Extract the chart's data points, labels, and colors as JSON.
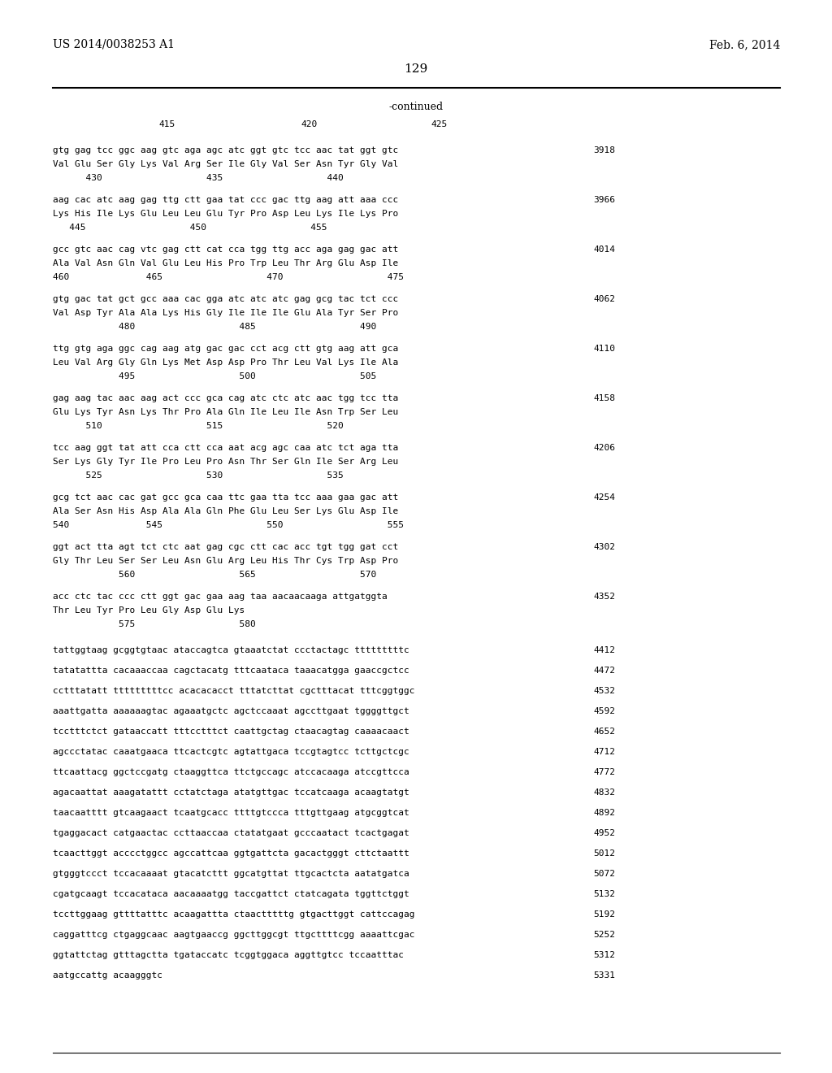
{
  "background_color": "#ffffff",
  "header_left": "US 2014/0038253 A1",
  "header_right": "Feb. 6, 2014",
  "page_number": "129",
  "continued_label": "-continued",
  "multi_blocks": [
    {
      "dna": "gtg gag tcc ggc aag gtc aga agc atc ggt gtc tcc aac tat ggt gtc",
      "aa": "Val Glu Ser Gly Lys Val Arg Ser Ile Gly Val Ser Asn Tyr Gly Val",
      "ruler": "      430                   435                   440",
      "num": "3918"
    },
    {
      "dna": "aag cac atc aag gag ttg ctt gaa tat ccc gac ttg aag att aaa ccc",
      "aa": "Lys His Ile Lys Glu Leu Leu Glu Tyr Pro Asp Leu Lys Ile Lys Pro",
      "ruler": "   445                   450                   455",
      "num": "3966"
    },
    {
      "dna": "gcc gtc aac cag vtc gag ctt cat cca tgg ttg acc aga gag gac att",
      "aa": "Ala Val Asn Gln Val Glu Leu His Pro Trp Leu Thr Arg Glu Asp Ile",
      "ruler": "460              465                   470                   475",
      "num": "4014"
    },
    {
      "dna": "gtg gac tat gct gcc aaa cac gga atc atc atc gag gcg tac tct ccc",
      "aa": "Val Asp Tyr Ala Ala Lys His Gly Ile Ile Ile Glu Ala Tyr Ser Pro",
      "ruler": "            480                   485                   490",
      "num": "4062"
    },
    {
      "dna": "ttg gtg aga ggc cag aag atg gac gac cct acg ctt gtg aag att gca",
      "aa": "Leu Val Arg Gly Gln Lys Met Asp Asp Pro Thr Leu Val Lys Ile Ala",
      "ruler": "            495                   500                   505",
      "num": "4110"
    },
    {
      "dna": "gag aag tac aac aag act ccc gca cag atc ctc atc aac tgg tcc tta",
      "aa": "Glu Lys Tyr Asn Lys Thr Pro Ala Gln Ile Leu Ile Asn Trp Ser Leu",
      "ruler": "      510                   515                   520",
      "num": "4158"
    },
    {
      "dna": "tcc aag ggt tat att cca ctt cca aat acg agc caa atc tct aga tta",
      "aa": "Ser Lys Gly Tyr Ile Pro Leu Pro Asn Thr Ser Gln Ile Ser Arg Leu",
      "ruler": "      525                   530                   535",
      "num": "4206"
    },
    {
      "dna": "gcg tct aac cac gat gcc gca caa ttc gaa tta tcc aaa gaa gac att",
      "aa": "Ala Ser Asn His Asp Ala Ala Gln Phe Glu Leu Ser Lys Glu Asp Ile",
      "ruler": "540              545                   550                   555",
      "num": "4254"
    },
    {
      "dna": "ggt act tta agt tct ctc aat gag cgc ctt cac acc tgt tgg gat cct",
      "aa": "Gly Thr Leu Ser Ser Leu Asn Glu Arg Leu His Thr Cys Trp Asp Pro",
      "ruler": "            560                   565                   570",
      "num": "4302"
    },
    {
      "dna": "acc ctc tac ccc ctt ggt gac gaa aag taa aacaacaaga attgatggta",
      "aa": "Thr Leu Tyr Pro Leu Gly Asp Glu Lys",
      "ruler": "            575                   580",
      "num": "4352"
    }
  ],
  "single_blocks": [
    [
      "tattggtaag gcggtgtaac ataccagtca gtaaatctat ccctactagc tttttttttc",
      "4412"
    ],
    [
      "tatatattta cacaaaccaa cagctacatg tttcaataca taaacatgga gaaccgctcc",
      "4472"
    ],
    [
      "cctttatatt tttttttttcc acacacacct tttatcttat cgctttacat tttcggtggc",
      "4532"
    ],
    [
      "aaattgatta aaaaaagtac agaaatgctc agctccaaat agccttgaat tggggttgct",
      "4592"
    ],
    [
      "tcctttctct gataaccatt tttcctttct caattgctag ctaacagtag caaaacaact",
      "4652"
    ],
    [
      "agccctatac caaatgaaca ttcactcgtc agtattgaca tccgtagtcc tcttgctcgc",
      "4712"
    ],
    [
      "ttcaattacg ggctccgatg ctaaggttca ttctgccagc atccacaaga atccgttcca",
      "4772"
    ],
    [
      "agacaattat aaagatattt cctatctaga atatgttgac tccatcaaga acaagtatgt",
      "4832"
    ],
    [
      "taacaatttt gtcaagaact tcaatgcacc ttttgtccca tttgttgaag atgcggtcat",
      "4892"
    ],
    [
      "tgaggacact catgaactac ccttaaccaa ctatatgaat gcccaatact tcactgagat",
      "4952"
    ],
    [
      "tcaacttggt acccctggcc agccattcaa ggtgattcta gacactgggt cttctaattt",
      "5012"
    ],
    [
      "gtgggtccct tccacaaaat gtacatcttt ggcatgttat ttgcactcta aatatgatca",
      "5072"
    ],
    [
      "cgatgcaagt tccacataca aacaaaatgg taccgattct ctatcagata tggttctggt",
      "5132"
    ],
    [
      "tccttggaag gttttatttc acaagattta ctaactttttg gtgacttggt cattccagag",
      "5192"
    ],
    [
      "caggatttcg ctgaggcaac aagtgaaccg ggcttggcgt ttgcttttcgg aaaattcgac",
      "5252"
    ],
    [
      "ggtattctag gtttagctta tgataccatc tcggtggaca aggttgtcc tccaatttac",
      "5312"
    ],
    [
      "aatgccattg acaagggtc",
      "5331"
    ]
  ]
}
